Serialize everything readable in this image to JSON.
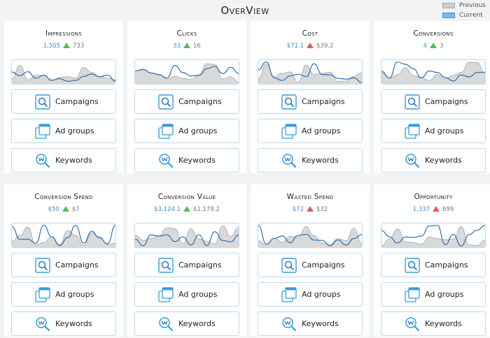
{
  "page": {
    "title": "OverView"
  },
  "legend": {
    "previous": "Previous",
    "current": "Current",
    "previous_color": "#cfcfcf",
    "current_color": "#7fb8e6"
  },
  "colors": {
    "current_line": "#2f6fb0",
    "previous_fill": "#d9d9d9",
    "previous_line": "#a8a8a8",
    "up": "#5cb85c",
    "down": "#e25a5a",
    "accent": "#3a8fd0"
  },
  "nav_labels": {
    "campaigns": "Campaigns",
    "ad_groups": "Ad groups",
    "keywords": "Keywords"
  },
  "icons": {
    "campaigns": "search-icon",
    "ad_groups": "stacked-windows-icon",
    "keywords": "keyword-search-icon"
  },
  "cards": [
    {
      "title": "Impressions",
      "current": "1,505",
      "previous": "733",
      "trend": "up"
    },
    {
      "title": "Clicks",
      "current": "33",
      "previous": "16",
      "trend": "up"
    },
    {
      "title": "Cost",
      "current": "$71.1",
      "previous": "$39.2",
      "trend": "down"
    },
    {
      "title": "Conversions",
      "current": "4",
      "previous": "3",
      "trend": "up"
    },
    {
      "title": "Conversion Spend",
      "current": "$50",
      "previous": "$7",
      "trend": "up"
    },
    {
      "title": "Conversion Value",
      "current": "$3,124.1",
      "previous": "$1,178.2",
      "trend": "up"
    },
    {
      "title": "Wasted Spend",
      "current": "$72",
      "previous": "$32",
      "trend": "down"
    },
    {
      "title": "Opportunity",
      "current": "1,337",
      "previous": "699",
      "trend": "down"
    }
  ]
}
